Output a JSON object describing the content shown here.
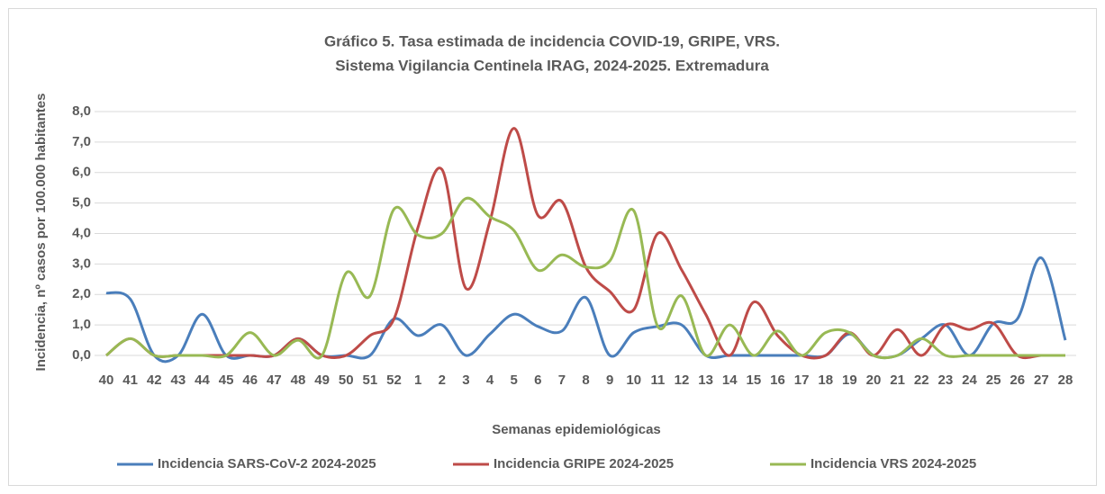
{
  "chart_data": {
    "type": "line",
    "title": [
      "Gráfico 5. Tasa estimada de incidencia COVID-19, GRIPE, VRS.",
      "Sistema Vigilancia Centinela IRAG, 2024-2025. Extremadura"
    ],
    "x_label": "Semanas epidemiológicas",
    "y_label": "Incidencia, nº casos por 100.000 habitantes",
    "categories": [
      "40",
      "41",
      "42",
      "43",
      "44",
      "45",
      "46",
      "47",
      "48",
      "49",
      "50",
      "51",
      "52",
      "1",
      "2",
      "3",
      "4",
      "5",
      "6",
      "7",
      "8",
      "9",
      "10",
      "11",
      "12",
      "13",
      "14",
      "15",
      "16",
      "17",
      "18",
      "19",
      "20",
      "21",
      "22",
      "23",
      "24",
      "25",
      "26",
      "27",
      "28"
    ],
    "series": [
      {
        "name": "Incidencia SARS-CoV-2 2024-2025",
        "color": "#4a7ebb",
        "values": [
          2.05,
          1.85,
          0,
          0,
          1.35,
          0,
          0,
          0,
          0.55,
          0,
          0,
          0,
          1.2,
          0.65,
          1.0,
          0,
          0.7,
          1.35,
          0.95,
          0.8,
          1.9,
          0,
          0.75,
          0.95,
          1.0,
          0,
          0,
          0,
          0,
          0,
          0,
          0.7,
          0,
          0,
          0.55,
          1.0,
          0,
          1.05,
          1.2,
          3.2,
          0.5
        ]
      },
      {
        "name": "Incidencia GRIPE 2024-2025",
        "color": "#be4b48",
        "values": [
          0,
          0.55,
          0,
          0,
          0,
          0,
          0,
          0,
          0.55,
          0,
          0,
          0.65,
          1.2,
          4.2,
          6.1,
          2.2,
          4.4,
          7.45,
          4.6,
          5.05,
          2.9,
          2.1,
          1.5,
          4.0,
          2.8,
          1.35,
          0,
          1.75,
          0.65,
          0,
          0,
          0.75,
          0,
          0.85,
          0,
          1.0,
          0.85,
          1.05,
          0,
          0,
          0
        ]
      },
      {
        "name": "Incidencia VRS 2024-2025",
        "color": "#98b954",
        "values": [
          0,
          0.55,
          0,
          0,
          0,
          0,
          0.75,
          0,
          0.5,
          0,
          2.7,
          1.95,
          4.8,
          3.95,
          4.0,
          5.15,
          4.55,
          4.1,
          2.8,
          3.3,
          2.9,
          3.1,
          4.75,
          0.95,
          1.95,
          0,
          1.0,
          0,
          0.8,
          0,
          0.75,
          0.75,
          0,
          0,
          0.55,
          0,
          0,
          0,
          0,
          0,
          0
        ]
      }
    ],
    "ylim": [
      0,
      8
    ],
    "yticks": [
      {
        "value": 0,
        "label": "0,0"
      },
      {
        "value": 1,
        "label": "1,0"
      },
      {
        "value": 2,
        "label": "2,0"
      },
      {
        "value": 3,
        "label": "3,0"
      },
      {
        "value": 4,
        "label": "4,0"
      },
      {
        "value": 5,
        "label": "5,0"
      },
      {
        "value": 6,
        "label": "6,0"
      },
      {
        "value": 7,
        "label": "7,0"
      },
      {
        "value": 8,
        "label": "8,0"
      }
    ],
    "grid": true,
    "legend": "bottom",
    "smooth": true
  }
}
